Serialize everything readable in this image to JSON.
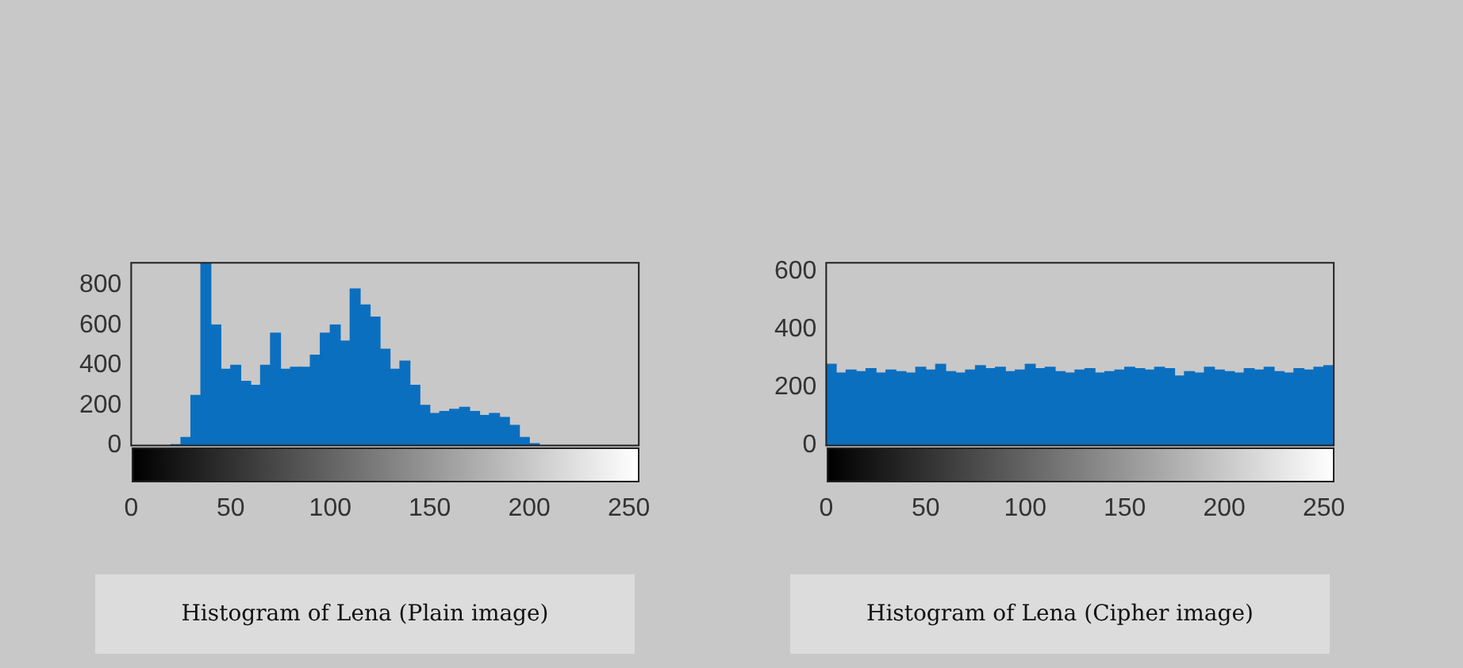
{
  "chart_data": [
    {
      "type": "histogram",
      "annotations": [
        "Histogram of Lena (Plain image)"
      ],
      "color": "#0b6fbf",
      "grid": false,
      "bins": [
        0,
        5,
        10,
        15,
        20,
        25,
        30,
        35,
        40,
        45,
        50,
        55,
        60,
        65,
        70,
        75,
        80,
        85,
        90,
        95,
        100,
        105,
        110,
        115,
        120,
        125,
        130,
        135,
        140,
        145,
        150,
        155,
        160,
        165,
        170,
        175,
        180,
        185,
        190,
        195,
        200,
        205,
        210,
        215,
        220,
        225,
        230,
        235,
        240,
        245,
        250,
        255
      ],
      "values": [
        0,
        0,
        0,
        0,
        5,
        40,
        250,
        910,
        600,
        380,
        400,
        320,
        300,
        400,
        560,
        380,
        390,
        390,
        450,
        560,
        600,
        520,
        780,
        700,
        640,
        480,
        380,
        420,
        300,
        200,
        160,
        170,
        180,
        190,
        170,
        150,
        160,
        140,
        100,
        40,
        10,
        0,
        0,
        0,
        0,
        0,
        0,
        0,
        0,
        0,
        0
      ],
      "xlim": [
        0,
        255
      ],
      "xticks": [
        0,
        50,
        100,
        150,
        200,
        250
      ],
      "ylim": [
        0,
        910
      ],
      "yticks": [
        0,
        200,
        400,
        600,
        800
      ]
    },
    {
      "type": "histogram",
      "annotations": [
        "Histogram of Lena (Cipher image)"
      ],
      "color": "#0b6fbf",
      "grid": false,
      "bins": [
        0,
        5,
        10,
        15,
        20,
        25,
        30,
        35,
        40,
        45,
        50,
        55,
        60,
        65,
        70,
        75,
        80,
        85,
        90,
        95,
        100,
        105,
        110,
        115,
        120,
        125,
        130,
        135,
        140,
        145,
        150,
        155,
        160,
        165,
        170,
        175,
        180,
        185,
        190,
        195,
        200,
        205,
        210,
        215,
        220,
        225,
        230,
        235,
        240,
        245,
        250,
        255
      ],
      "values": [
        280,
        250,
        260,
        255,
        265,
        250,
        260,
        255,
        250,
        270,
        260,
        280,
        255,
        250,
        260,
        275,
        265,
        270,
        255,
        260,
        280,
        265,
        270,
        255,
        250,
        260,
        265,
        250,
        255,
        260,
        270,
        265,
        260,
        270,
        265,
        240,
        255,
        250,
        270,
        260,
        255,
        250,
        265,
        260,
        270,
        255,
        250,
        265,
        260,
        270,
        275
      ],
      "xlim": [
        0,
        255
      ],
      "xticks": [
        0,
        50,
        100,
        150,
        200,
        250
      ],
      "ylim": [
        0,
        630
      ],
      "yticks": [
        0,
        200,
        400,
        600
      ]
    }
  ]
}
